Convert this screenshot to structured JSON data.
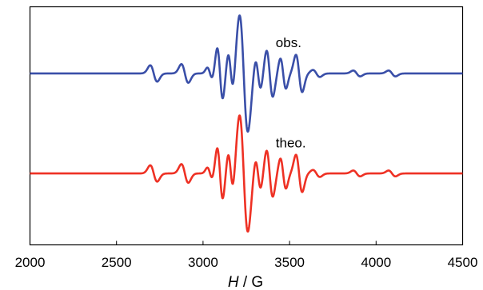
{
  "chart_data": {
    "type": "line",
    "title": "",
    "xlabel_italic": "H",
    "xlabel_rest": " / G",
    "ylabel": "",
    "xlim": [
      2000,
      4500
    ],
    "x_ticks": [
      2000,
      2500,
      3000,
      3500,
      4000,
      4500
    ],
    "x_tick_labels": [
      "2000",
      "2500",
      "3000",
      "3500",
      "4000",
      "4500"
    ],
    "grid": false,
    "legend": "none",
    "series": [
      {
        "name": "obs.",
        "color": "#3a4fa8",
        "baseline": 0.72,
        "peaks": [
          {
            "x": 2715,
            "a": 0.14,
            "w": 20
          },
          {
            "x": 2895,
            "a": 0.16,
            "w": 20
          },
          {
            "x": 3040,
            "a": 0.1,
            "w": 15
          },
          {
            "x": 3098,
            "a": 0.44,
            "w": 16
          },
          {
            "x": 3160,
            "a": 0.33,
            "w": 15
          },
          {
            "x": 3235,
            "a": 1.0,
            "w": 24
          },
          {
            "x": 3318,
            "a": 0.27,
            "w": 16
          },
          {
            "x": 3385,
            "a": 0.4,
            "w": 18
          },
          {
            "x": 3463,
            "a": 0.26,
            "w": 16
          },
          {
            "x": 3555,
            "a": 0.32,
            "w": 18
          },
          {
            "x": 3655,
            "a": 0.06,
            "w": 20
          },
          {
            "x": 3888,
            "a": 0.05,
            "w": 20
          },
          {
            "x": 4092,
            "a": 0.05,
            "w": 20
          }
        ]
      },
      {
        "name": "theo.",
        "color": "#ee3124",
        "baseline": 0.3,
        "peaks": [
          {
            "x": 2715,
            "a": 0.14,
            "w": 20
          },
          {
            "x": 2895,
            "a": 0.16,
            "w": 20
          },
          {
            "x": 3040,
            "a": 0.1,
            "w": 15
          },
          {
            "x": 3098,
            "a": 0.44,
            "w": 16
          },
          {
            "x": 3160,
            "a": 0.33,
            "w": 15
          },
          {
            "x": 3235,
            "a": 1.0,
            "w": 24
          },
          {
            "x": 3318,
            "a": 0.27,
            "w": 16
          },
          {
            "x": 3385,
            "a": 0.4,
            "w": 18
          },
          {
            "x": 3463,
            "a": 0.26,
            "w": 16
          },
          {
            "x": 3555,
            "a": 0.32,
            "w": 18
          },
          {
            "x": 3655,
            "a": 0.06,
            "w": 20
          },
          {
            "x": 3888,
            "a": 0.05,
            "w": 20
          },
          {
            "x": 4092,
            "a": 0.05,
            "w": 20
          }
        ]
      }
    ],
    "annotations": [
      {
        "text": "obs.",
        "x": 3420,
        "y": 0.83
      },
      {
        "text": "theo.",
        "x": 3420,
        "y": 0.41
      }
    ]
  }
}
